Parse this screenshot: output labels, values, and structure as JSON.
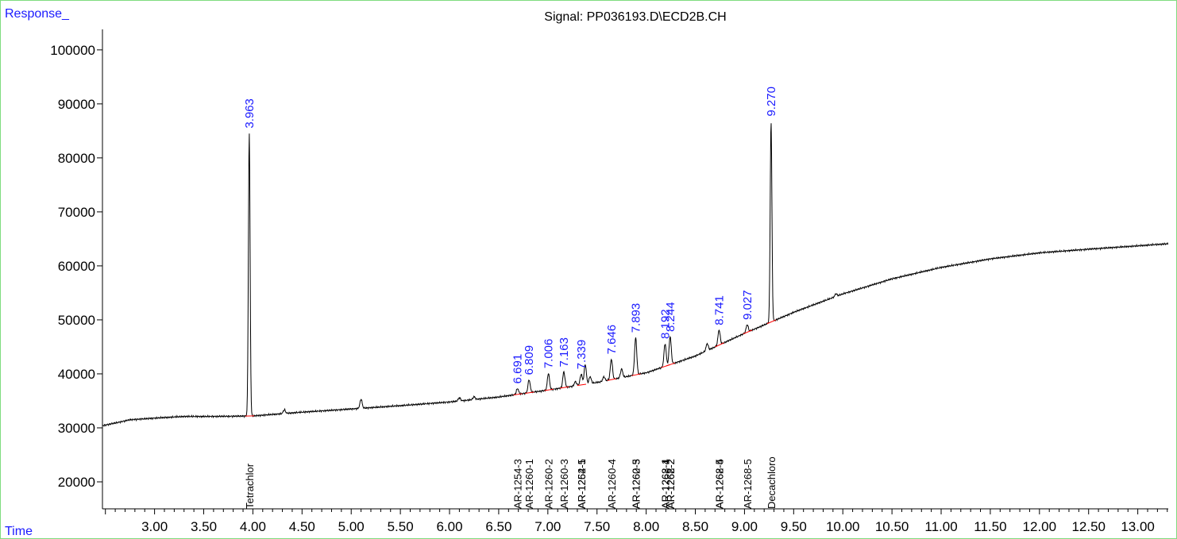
{
  "chart_data": {
    "type": "line",
    "title": "Signal: PP036193.D\\ECD2B.CH",
    "ylabel": "Response_",
    "xlabel": "Time",
    "xlim": [
      2.47,
      13.31
    ],
    "ylim": [
      15000,
      103800
    ],
    "xticks": [
      "3.00",
      "3.50",
      "4.00",
      "4.50",
      "5.00",
      "5.50",
      "6.00",
      "6.50",
      "7.00",
      "7.50",
      "8.00",
      "8.50",
      "9.00",
      "9.50",
      "10.00",
      "10.50",
      "11.00",
      "11.50",
      "12.00",
      "12.50",
      "13.00"
    ],
    "yticks": [
      "20000",
      "30000",
      "40000",
      "50000",
      "60000",
      "70000",
      "80000",
      "90000",
      "100000"
    ],
    "baseline": [
      [
        2.47,
        30400
      ],
      [
        2.6,
        30900
      ],
      [
        2.75,
        31500
      ],
      [
        3.0,
        31800
      ],
      [
        3.3,
        32100
      ],
      [
        3.5,
        32100
      ],
      [
        4.0,
        32200
      ],
      [
        4.5,
        32900
      ],
      [
        5.0,
        33500
      ],
      [
        5.5,
        34100
      ],
      [
        6.0,
        34800
      ],
      [
        6.5,
        35700
      ],
      [
        7.0,
        37000
      ],
      [
        7.5,
        38400
      ],
      [
        8.0,
        40200
      ],
      [
        8.5,
        43300
      ],
      [
        9.0,
        47500
      ],
      [
        9.5,
        51400
      ],
      [
        10.0,
        54800
      ],
      [
        10.5,
        57600
      ],
      [
        11.0,
        59700
      ],
      [
        11.5,
        61300
      ],
      [
        12.0,
        62400
      ],
      [
        12.5,
        63100
      ],
      [
        13.0,
        63700
      ],
      [
        13.31,
        64100
      ]
    ],
    "peaks": [
      {
        "rt": 3.963,
        "height": 52400,
        "label": "3.963"
      },
      {
        "rt": 4.32,
        "height": 700
      },
      {
        "rt": 5.1,
        "height": 1700
      },
      {
        "rt": 6.1,
        "height": 600
      },
      {
        "rt": 6.25,
        "height": 500
      },
      {
        "rt": 6.691,
        "height": 1100,
        "label": "6.691"
      },
      {
        "rt": 6.809,
        "height": 2400,
        "label": "6.809"
      },
      {
        "rt": 7.006,
        "height": 3100,
        "label": "7.006"
      },
      {
        "rt": 7.163,
        "height": 2900,
        "label": "7.163"
      },
      {
        "rt": 7.28,
        "height": 800
      },
      {
        "rt": 7.339,
        "height": 2000,
        "label": "7.339"
      },
      {
        "rt": 7.38,
        "height": 3700
      },
      {
        "rt": 7.43,
        "height": 1300
      },
      {
        "rt": 7.57,
        "height": 800
      },
      {
        "rt": 7.646,
        "height": 3800,
        "label": "7.646"
      },
      {
        "rt": 7.75,
        "height": 1600
      },
      {
        "rt": 7.893,
        "height": 6900,
        "label": "7.893"
      },
      {
        "rt": 8.192,
        "height": 4200,
        "label": "8.192"
      },
      {
        "rt": 8.244,
        "height": 5200,
        "label": "8.244"
      },
      {
        "rt": 8.62,
        "height": 1300
      },
      {
        "rt": 8.741,
        "height": 2800,
        "label": "8.741"
      },
      {
        "rt": 9.027,
        "height": 1400,
        "label": "9.027"
      },
      {
        "rt": 9.27,
        "height": 37200,
        "label": "9.270"
      },
      {
        "rt": 9.93,
        "height": 500
      }
    ],
    "compounds": [
      {
        "rt": 3.963,
        "names": [
          "Tetrachlor"
        ]
      },
      {
        "rt": 6.691,
        "names": [
          "AR-1254-3"
        ]
      },
      {
        "rt": 6.809,
        "names": [
          "AR-1260-1"
        ]
      },
      {
        "rt": 7.006,
        "names": [
          "AR-1260-2"
        ]
      },
      {
        "rt": 7.163,
        "names": [
          "AR-1260-3"
        ]
      },
      {
        "rt": 7.339,
        "names": [
          "AR-1254-5",
          "AR-1262-1"
        ]
      },
      {
        "rt": 7.646,
        "names": [
          "AR-1260-4"
        ]
      },
      {
        "rt": 7.893,
        "names": [
          "AR-1260-5",
          "AR-1262-3"
        ]
      },
      {
        "rt": 8.192,
        "names": [
          "AR-1268-1",
          "AR-1262-4"
        ]
      },
      {
        "rt": 8.244,
        "names": [
          "AR-1262-2",
          "AR-1268-2"
        ]
      },
      {
        "rt": 8.741,
        "names": [
          "AR-1262-5",
          "AR-1268-4"
        ]
      },
      {
        "rt": 9.027,
        "names": [
          "AR-1268-5"
        ]
      },
      {
        "rt": 9.27,
        "names": [
          "Decachloro"
        ]
      }
    ],
    "colors": {
      "trace": "#000000",
      "baseline_marks": "#ff0000",
      "peak_labels": "#1a1aff",
      "frame": "#7fdc7f"
    },
    "grid": false,
    "legend": "none"
  }
}
